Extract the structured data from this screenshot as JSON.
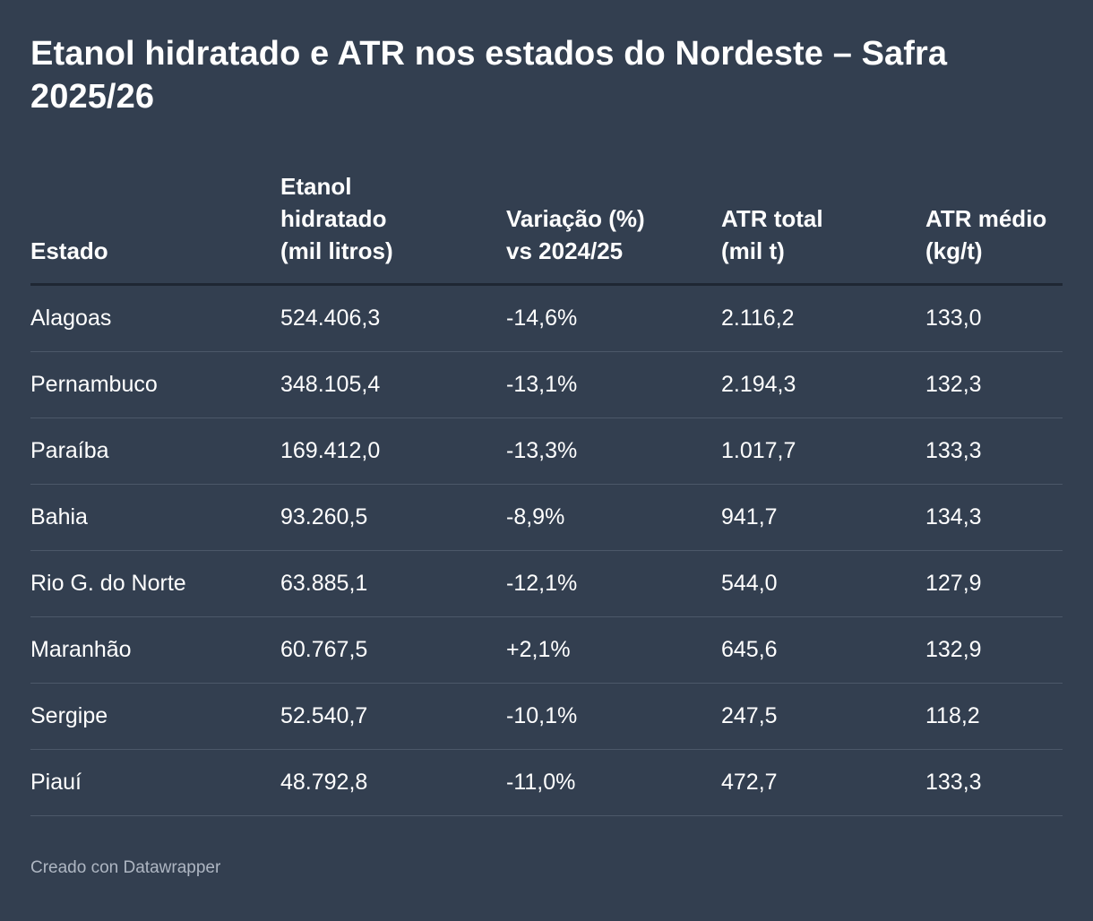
{
  "title": "Etanol hidratado e ATR nos estados do Nordeste – Safra 2025/26",
  "colors": {
    "background": "#333f50",
    "text": "#ffffff",
    "footer_text": "#aeb6c2",
    "header_rule": "#1f2733",
    "row_rule": "#4c5869"
  },
  "table": {
    "headers": [
      [
        "Estado"
      ],
      [
        "Etanol",
        "hidratado",
        "(mil litros)"
      ],
      [
        "Variação (%)",
        "vs 2024/25"
      ],
      [
        "ATR total",
        "(mil t)"
      ],
      [
        "ATR médio",
        "(kg/t)"
      ]
    ]
  },
  "chart_data": {
    "type": "table",
    "title": "Etanol hidratado e ATR nos estados do Nordeste – Safra 2025/26",
    "columns": [
      "Estado",
      "Etanol hidratado (mil litros)",
      "Variação (%) vs 2024/25",
      "ATR total (mil t)",
      "ATR médio (kg/t)"
    ],
    "rows": [
      [
        "Alagoas",
        "524.406,3",
        "-14,6%",
        "2.116,2",
        "133,0"
      ],
      [
        "Pernambuco",
        "348.105,4",
        "-13,1%",
        "2.194,3",
        "132,3"
      ],
      [
        "Paraíba",
        "169.412,0",
        "-13,3%",
        "1.017,7",
        "133,3"
      ],
      [
        "Bahia",
        "93.260,5",
        "-8,9%",
        "941,7",
        "134,3"
      ],
      [
        "Rio G. do Norte",
        "63.885,1",
        "-12,1%",
        "544,0",
        "127,9"
      ],
      [
        "Maranhão",
        "60.767,5",
        "+2,1%",
        "645,6",
        "132,9"
      ],
      [
        "Sergipe",
        "52.540,7",
        "-10,1%",
        "247,5",
        "118,2"
      ],
      [
        "Piauí",
        "48.792,8",
        "-11,0%",
        "472,7",
        "133,3"
      ]
    ]
  },
  "footer": "Creado con Datawrapper"
}
